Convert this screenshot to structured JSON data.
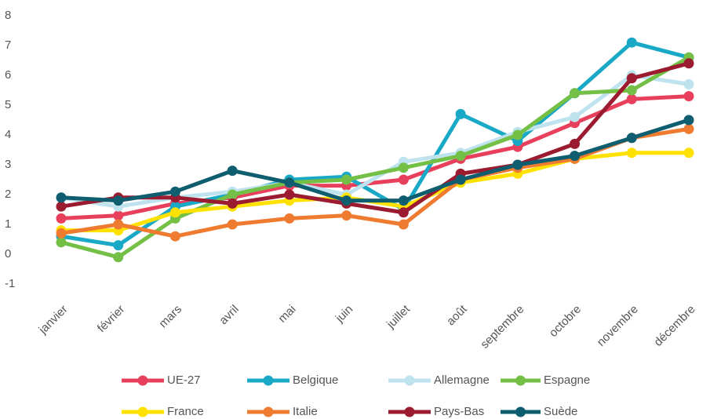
{
  "chart_data": {
    "type": "line",
    "categories": [
      "janvier",
      "février",
      "mars",
      "avril",
      "mai",
      "juin",
      "juillet",
      "août",
      "septembre",
      "octobre",
      "novembre",
      "décembre"
    ],
    "ylim": [
      -1,
      8
    ],
    "yticks": [
      -1,
      0,
      1,
      2,
      3,
      4,
      5,
      6,
      7,
      8
    ],
    "grid": false,
    "legend": "bottom",
    "series": [
      {
        "name": "UE-27",
        "color": "#e8405c",
        "values": [
          1.2,
          1.3,
          1.7,
          1.9,
          2.3,
          2.3,
          2.5,
          3.2,
          3.6,
          4.4,
          5.2,
          5.3
        ]
      },
      {
        "name": "Belgique",
        "color": "#19a9c6",
        "values": [
          0.6,
          0.3,
          1.6,
          2.0,
          2.5,
          2.6,
          1.5,
          4.7,
          3.8,
          5.4,
          7.1,
          6.6
        ]
      },
      {
        "name": "Allemagne",
        "color": "#bfe3ee",
        "values": [
          1.9,
          1.6,
          1.9,
          2.1,
          2.4,
          2.0,
          3.1,
          3.4,
          4.1,
          4.6,
          6.0,
          5.7
        ]
      },
      {
        "name": "Espagne",
        "color": "#74bf45",
        "values": [
          0.4,
          -0.1,
          1.2,
          2.0,
          2.4,
          2.5,
          2.9,
          3.3,
          4.0,
          5.4,
          5.5,
          6.6
        ]
      },
      {
        "name": "France",
        "color": "#ffe100",
        "values": [
          0.8,
          0.8,
          1.4,
          1.6,
          1.8,
          1.9,
          1.6,
          2.4,
          2.7,
          3.2,
          3.4,
          3.4
        ]
      },
      {
        "name": "Italie",
        "color": "#ef7b30",
        "values": [
          0.7,
          1.0,
          0.6,
          1.0,
          1.2,
          1.3,
          1.0,
          2.5,
          2.9,
          3.2,
          3.9,
          4.2
        ]
      },
      {
        "name": "Pays-Bas",
        "color": "#9b1b30",
        "values": [
          1.6,
          1.9,
          1.9,
          1.7,
          2.0,
          1.7,
          1.4,
          2.7,
          3.0,
          3.7,
          5.9,
          6.4
        ]
      },
      {
        "name": "Suède",
        "color": "#0f5e70",
        "values": [
          1.9,
          1.8,
          2.1,
          2.8,
          2.4,
          1.8,
          1.8,
          2.5,
          3.0,
          3.3,
          3.9,
          4.5
        ]
      }
    ]
  }
}
